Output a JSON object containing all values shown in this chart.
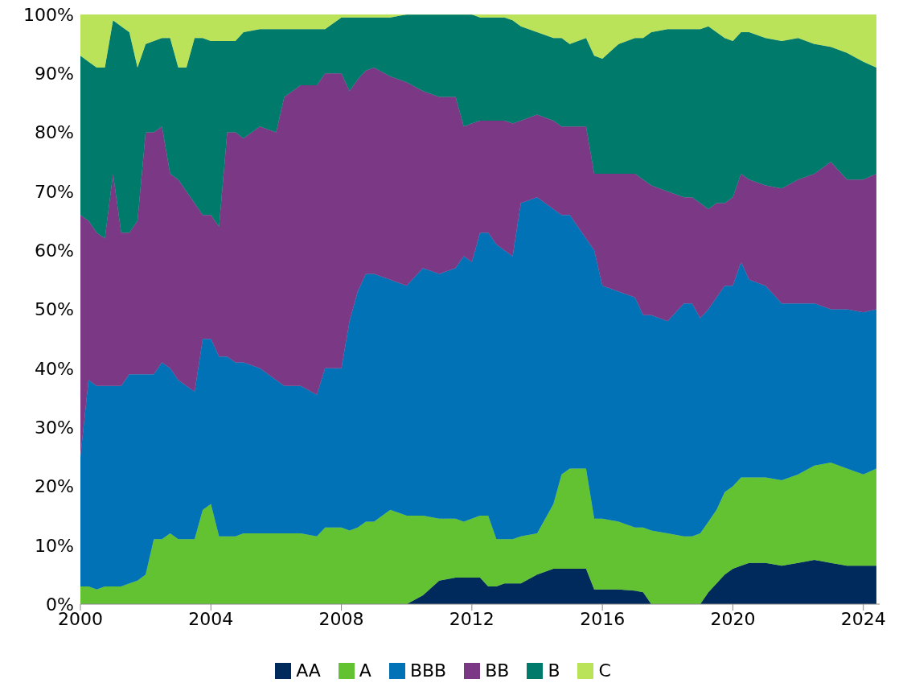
{
  "chart_data": {
    "type": "area",
    "stacked": true,
    "legend": "bottom",
    "grid": false,
    "x": [
      2000,
      2000.25,
      2000.5,
      2000.75,
      2001,
      2001.25,
      2001.5,
      2001.75,
      2002,
      2002.25,
      2002.5,
      2002.75,
      2003,
      2003.25,
      2003.5,
      2003.75,
      2004,
      2004.25,
      2004.5,
      2004.75,
      2005,
      2005.5,
      2006,
      2006.25,
      2006.75,
      2007.25,
      2007.5,
      2008,
      2008.25,
      2008.5,
      2008.75,
      2009,
      2009.5,
      2010,
      2010.5,
      2011,
      2011.5,
      2011.75,
      2012,
      2012.25,
      2012.5,
      2012.75,
      2013,
      2013.25,
      2013.5,
      2014,
      2014.5,
      2014.75,
      2015,
      2015.5,
      2015.75,
      2016,
      2016.5,
      2017,
      2017.25,
      2017.5,
      2018,
      2018.5,
      2018.75,
      2019,
      2019.25,
      2019.5,
      2019.75,
      2020,
      2020.25,
      2020.5,
      2021,
      2021.5,
      2022,
      2022.5,
      2023,
      2023.5,
      2024,
      2024.4
    ],
    "xlim": [
      2000,
      2024.5
    ],
    "xticks": [
      2000,
      2004,
      2008,
      2012,
      2016,
      2020,
      2024
    ],
    "ylim": [
      0,
      100
    ],
    "yticks": [
      {
        "value": 0,
        "label": "0%"
      },
      {
        "value": 10,
        "label": "10%"
      },
      {
        "value": 20,
        "label": "20%"
      },
      {
        "value": 30,
        "label": "30%"
      },
      {
        "value": 40,
        "label": "40%"
      },
      {
        "value": 50,
        "label": "50%"
      },
      {
        "value": 60,
        "label": "60%"
      },
      {
        "value": 70,
        "label": "70%"
      },
      {
        "value": 80,
        "label": "80%"
      },
      {
        "value": 90,
        "label": "90%"
      },
      {
        "value": 100,
        "label": "100%"
      }
    ],
    "series": [
      {
        "name": "AA",
        "color": "#002a5c",
        "values": [
          0,
          0,
          0,
          0,
          0,
          0,
          0,
          0,
          0,
          0,
          0,
          0,
          0,
          0,
          0,
          0,
          0,
          0,
          0,
          0,
          0,
          0,
          0,
          0,
          0,
          0,
          0,
          0,
          0,
          0,
          0,
          0,
          0,
          0,
          1.5,
          4,
          4.5,
          4.5,
          4.5,
          4.5,
          3,
          3,
          3.5,
          3.5,
          3.5,
          5,
          6,
          6,
          6,
          6,
          2.5,
          2.5,
          2.5,
          2.3,
          2,
          0,
          0,
          0,
          0,
          0,
          2,
          3.5,
          5,
          6,
          6.5,
          7,
          7,
          6.5,
          7,
          7.5,
          7,
          6.5,
          6.5,
          6.5
        ]
      },
      {
        "name": "A",
        "color": "#62c232",
        "values": [
          3,
          3,
          2.5,
          3,
          3,
          3,
          3.5,
          4,
          5,
          11,
          11,
          12,
          11,
          11,
          11,
          16,
          17,
          11.5,
          11.5,
          11.5,
          12,
          12,
          12,
          12,
          12,
          11.5,
          13,
          13,
          12.5,
          13,
          14,
          14,
          16,
          15,
          13.5,
          10.5,
          10,
          9.5,
          10,
          10.5,
          12,
          8,
          7.5,
          7.5,
          8,
          7,
          11,
          16,
          17,
          17,
          12,
          12,
          11.5,
          10.7,
          11,
          12.5,
          12,
          11.5,
          11.5,
          12,
          12,
          12.5,
          14,
          14,
          15,
          14.5,
          14.5,
          14.5,
          15,
          16,
          17,
          16.5,
          15.5,
          16.5
        ]
      },
      {
        "name": "BBB",
        "color": "#0072b5",
        "values": [
          22,
          35,
          34.5,
          34,
          34,
          34,
          35.5,
          35,
          34,
          28,
          30,
          28,
          27,
          26,
          25,
          29,
          28,
          30.5,
          30.5,
          29.5,
          29,
          28,
          26,
          25,
          25,
          24,
          27,
          27,
          35.5,
          40,
          42,
          42,
          39,
          39,
          42,
          41.5,
          42.5,
          45,
          43.5,
          48,
          48,
          50,
          49,
          48,
          56.5,
          57,
          50,
          44,
          43,
          39,
          45.5,
          39.5,
          39,
          39,
          36,
          36.5,
          36,
          39.5,
          39.5,
          36.5,
          36,
          36,
          35,
          34,
          36.5,
          33.5,
          32.5,
          30,
          29,
          27.5,
          26,
          27,
          27.5,
          27
        ]
      },
      {
        "name": "BB",
        "color": "#7b3884",
        "values": [
          41,
          27,
          26,
          25,
          36,
          26,
          24,
          26,
          41,
          41,
          40,
          33,
          34,
          33,
          32,
          21,
          21,
          22,
          38,
          39,
          38,
          41,
          42,
          49,
          51,
          52.5,
          50,
          50,
          39,
          36,
          34.5,
          35,
          34.5,
          34.5,
          30,
          30,
          29,
          22,
          23.5,
          19,
          19,
          21,
          22,
          22.5,
          14,
          14,
          15,
          15,
          15,
          19,
          13,
          19,
          20,
          21,
          23,
          22,
          22,
          18,
          18,
          19.5,
          17,
          16,
          14,
          15,
          15,
          17,
          17,
          19.5,
          21,
          22,
          25,
          22,
          22.5,
          23
        ]
      },
      {
        "name": "B",
        "color": "#007a6b",
        "values": [
          27,
          27,
          28,
          29,
          26,
          35,
          34,
          26,
          15,
          15.5,
          15,
          23,
          19,
          21,
          28,
          30,
          29.5,
          31.5,
          15.5,
          15.5,
          18,
          16.5,
          17.5,
          11.5,
          9.5,
          9.5,
          7.5,
          9.5,
          12.5,
          10.5,
          9,
          8.5,
          10,
          11.5,
          13,
          14,
          14,
          19,
          18.5,
          17.5,
          17.5,
          17.5,
          17.5,
          17.5,
          16,
          14,
          14,
          15,
          14,
          15,
          20,
          19.5,
          22,
          23,
          24,
          26,
          27.5,
          28.5,
          28.5,
          29.5,
          31,
          29,
          28,
          26.5,
          24,
          25,
          25,
          25,
          24,
          22,
          19.5,
          21.5,
          20,
          18
        ]
      },
      {
        "name": "C",
        "color": "#bbe35a",
        "values": [
          7,
          8,
          9,
          9,
          1,
          2,
          3,
          9,
          5,
          4.5,
          4,
          4,
          9,
          9,
          4,
          4,
          4.5,
          4.5,
          4.5,
          4.5,
          3,
          2.5,
          2.5,
          2.5,
          2.5,
          2.5,
          2.5,
          0.5,
          0.5,
          0.5,
          0.5,
          0.5,
          0.5,
          0,
          0,
          0,
          0,
          0,
          0,
          0.5,
          0.5,
          0.5,
          0.5,
          1,
          2,
          3,
          4,
          4,
          5,
          4,
          7,
          7.5,
          5,
          4,
          4,
          3,
          2.5,
          2.5,
          2.5,
          2.5,
          2,
          3,
          4,
          4.5,
          3,
          3,
          4,
          4.5,
          4,
          5,
          5.5,
          6.5,
          8,
          9
        ]
      }
    ]
  }
}
